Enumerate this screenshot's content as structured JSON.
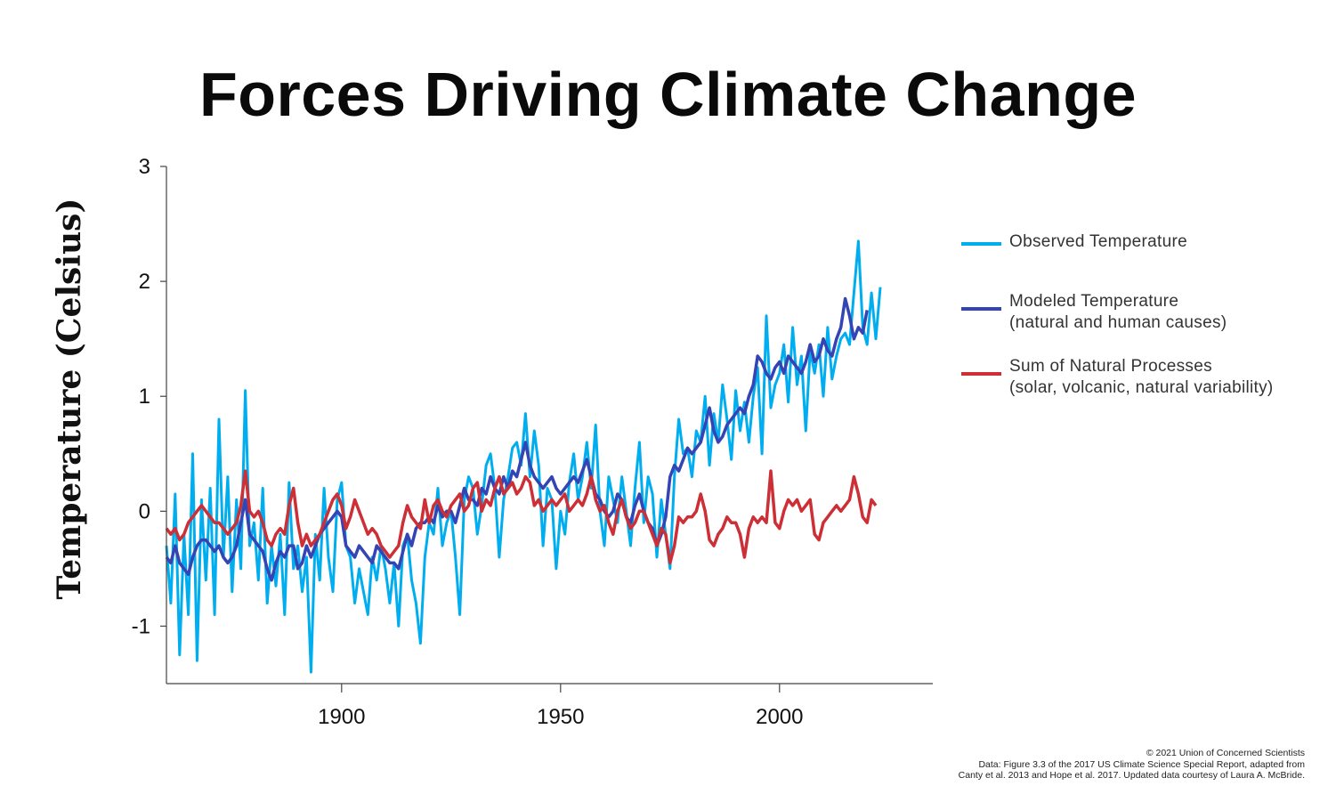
{
  "chart_data": {
    "type": "line",
    "title": "Forces Driving Climate Change",
    "xlabel": "",
    "ylabel": "Temperature (Celsius)",
    "xlim": [
      1860,
      2035
    ],
    "ylim": [
      -1.5,
      3
    ],
    "xticks": [
      1900,
      1950,
      2000
    ],
    "yticks": [
      3,
      2,
      1,
      0,
      -1
    ],
    "grid": false,
    "legend_position": "right",
    "series": [
      {
        "name": "Observed Temperature",
        "color": "#00AEEF",
        "x_start": 1860,
        "x_step": 1,
        "values": [
          -0.3,
          -0.8,
          0.15,
          -1.25,
          -0.2,
          -0.9,
          0.5,
          -1.3,
          0.1,
          -0.6,
          0.2,
          -0.9,
          0.8,
          -0.4,
          0.3,
          -0.7,
          0.1,
          -0.5,
          1.05,
          -0.3,
          -0.1,
          -0.6,
          0.2,
          -0.8,
          -0.3,
          -0.65,
          -0.2,
          -0.9,
          0.25,
          -0.5,
          -0.3,
          -0.7,
          -0.4,
          -1.4,
          -0.2,
          -0.6,
          0.2,
          -0.4,
          -0.7,
          0.1,
          0.25,
          -0.3,
          -0.4,
          -0.8,
          -0.5,
          -0.7,
          -0.9,
          -0.4,
          -0.6,
          -0.3,
          -0.5,
          -0.8,
          -0.45,
          -1.0,
          -0.3,
          -0.2,
          -0.6,
          -0.8,
          -1.15,
          -0.4,
          -0.1,
          -0.2,
          0.2,
          -0.3,
          -0.1,
          0.0,
          -0.4,
          -0.9,
          0.1,
          0.3,
          0.2,
          -0.2,
          0.05,
          0.4,
          0.5,
          0.2,
          -0.4,
          0.1,
          0.3,
          0.55,
          0.6,
          0.4,
          0.85,
          0.3,
          0.7,
          0.4,
          -0.3,
          0.2,
          0.1,
          -0.5,
          0.0,
          -0.2,
          0.25,
          0.5,
          0.1,
          0.3,
          0.6,
          0.2,
          0.75,
          0.0,
          -0.3,
          0.3,
          0.1,
          -0.1,
          0.3,
          0.0,
          -0.3,
          0.2,
          0.6,
          -0.1,
          0.3,
          0.15,
          -0.4,
          0.1,
          -0.2,
          -0.5,
          0.3,
          0.8,
          0.5,
          0.55,
          0.3,
          0.7,
          0.6,
          1.0,
          0.4,
          0.85,
          0.6,
          1.1,
          0.8,
          0.45,
          1.05,
          0.7,
          0.95,
          0.6,
          1.0,
          1.25,
          0.5,
          1.7,
          0.9,
          1.1,
          1.2,
          1.45,
          0.95,
          1.6,
          1.1,
          1.35,
          0.7,
          1.4,
          1.2,
          1.45,
          1.0,
          1.6,
          1.15,
          1.35,
          1.5,
          1.55,
          1.45,
          1.9,
          2.35,
          1.6,
          1.45,
          1.9,
          1.5,
          1.95
        ]
      },
      {
        "name": "Modeled Temperature (natural and human causes)",
        "color": "#3444B4",
        "x_start": 1860,
        "x_step": 1,
        "values": [
          -0.4,
          -0.45,
          -0.3,
          -0.45,
          -0.5,
          -0.55,
          -0.4,
          -0.3,
          -0.25,
          -0.25,
          -0.3,
          -0.35,
          -0.3,
          -0.4,
          -0.45,
          -0.4,
          -0.3,
          -0.1,
          0.1,
          -0.2,
          -0.25,
          -0.3,
          -0.35,
          -0.5,
          -0.6,
          -0.45,
          -0.35,
          -0.4,
          -0.3,
          -0.3,
          -0.5,
          -0.45,
          -0.3,
          -0.4,
          -0.3,
          -0.2,
          -0.15,
          -0.1,
          -0.05,
          0.0,
          -0.05,
          -0.3,
          -0.35,
          -0.4,
          -0.3,
          -0.35,
          -0.4,
          -0.45,
          -0.3,
          -0.35,
          -0.4,
          -0.45,
          -0.45,
          -0.5,
          -0.35,
          -0.2,
          -0.3,
          -0.15,
          -0.1,
          -0.1,
          -0.05,
          -0.1,
          0.05,
          -0.05,
          0.0,
          0.0,
          -0.1,
          0.05,
          0.2,
          0.1,
          0.1,
          0.05,
          0.2,
          0.15,
          0.3,
          0.2,
          0.15,
          0.3,
          0.2,
          0.35,
          0.3,
          0.45,
          0.6,
          0.4,
          0.3,
          0.25,
          0.2,
          0.25,
          0.3,
          0.2,
          0.15,
          0.2,
          0.25,
          0.3,
          0.25,
          0.35,
          0.45,
          0.3,
          0.15,
          0.1,
          0.0,
          -0.05,
          0.0,
          0.15,
          0.1,
          -0.05,
          -0.1,
          0.05,
          0.15,
          0.0,
          -0.1,
          -0.15,
          -0.3,
          -0.2,
          -0.05,
          0.3,
          0.4,
          0.35,
          0.45,
          0.55,
          0.5,
          0.55,
          0.6,
          0.75,
          0.9,
          0.7,
          0.6,
          0.65,
          0.75,
          0.8,
          0.85,
          0.9,
          0.85,
          1.0,
          1.1,
          1.35,
          1.3,
          1.2,
          1.15,
          1.25,
          1.3,
          1.2,
          1.35,
          1.3,
          1.25,
          1.2,
          1.3,
          1.45,
          1.3,
          1.35,
          1.5,
          1.4,
          1.35,
          1.5,
          1.6,
          1.85,
          1.7,
          1.5,
          1.6,
          1.55,
          1.75
        ]
      },
      {
        "name": "Sum of Natural Processes (solar, volcanic, natural variability)",
        "color": "#CC2F36",
        "x_start": 1860,
        "x_step": 1,
        "values": [
          -0.15,
          -0.2,
          -0.15,
          -0.25,
          -0.2,
          -0.1,
          -0.05,
          0.0,
          0.05,
          0.0,
          -0.05,
          -0.1,
          -0.1,
          -0.15,
          -0.2,
          -0.15,
          -0.1,
          0.05,
          0.35,
          0.0,
          -0.05,
          0.0,
          -0.1,
          -0.25,
          -0.3,
          -0.2,
          -0.15,
          -0.2,
          0.05,
          0.2,
          -0.1,
          -0.3,
          -0.2,
          -0.3,
          -0.25,
          -0.2,
          -0.1,
          0.0,
          0.1,
          0.15,
          0.05,
          -0.15,
          -0.05,
          0.1,
          0.0,
          -0.1,
          -0.2,
          -0.15,
          -0.2,
          -0.3,
          -0.35,
          -0.4,
          -0.35,
          -0.3,
          -0.1,
          0.05,
          -0.05,
          -0.1,
          -0.15,
          0.1,
          -0.1,
          0.05,
          0.1,
          0.0,
          -0.05,
          0.05,
          0.1,
          0.15,
          0.0,
          0.05,
          0.2,
          0.25,
          0.0,
          0.1,
          0.05,
          0.2,
          0.3,
          0.15,
          0.2,
          0.25,
          0.15,
          0.2,
          0.3,
          0.25,
          0.05,
          0.1,
          0.0,
          0.05,
          0.1,
          0.05,
          0.1,
          0.15,
          0.0,
          0.05,
          0.1,
          0.05,
          0.15,
          0.3,
          0.1,
          0.0,
          0.05,
          -0.1,
          -0.2,
          0.0,
          0.1,
          -0.05,
          -0.15,
          -0.1,
          0.0,
          0.0,
          -0.1,
          -0.2,
          -0.3,
          -0.15,
          -0.2,
          -0.45,
          -0.3,
          -0.05,
          -0.1,
          -0.05,
          -0.05,
          0.0,
          0.15,
          0.0,
          -0.25,
          -0.3,
          -0.2,
          -0.15,
          -0.05,
          -0.1,
          -0.1,
          -0.2,
          -0.4,
          -0.15,
          -0.05,
          -0.1,
          -0.05,
          -0.1,
          0.35,
          -0.1,
          -0.15,
          0.0,
          0.1,
          0.05,
          0.1,
          0.0,
          0.05,
          0.1,
          -0.2,
          -0.25,
          -0.1,
          -0.05,
          0.0,
          0.05,
          0.0,
          0.05,
          0.1,
          0.3,
          0.15,
          -0.05,
          -0.1,
          0.1,
          0.05
        ]
      }
    ]
  },
  "legend": [
    {
      "line1": "Observed Temperature",
      "line2": ""
    },
    {
      "line1": "Modeled Temperature",
      "line2": "(natural and human causes)"
    },
    {
      "line1": "Sum of Natural Processes",
      "line2": "(solar, volcanic, natural variability)"
    }
  ],
  "credits": {
    "line1": "© 2021 Union of Concerned Scientists",
    "line2": "Data: Figure 3.3 of the 2017 US Climate Science Special Report, adapted from",
    "line3": "Canty et al. 2013 and Hope et al. 2017. Updated data courtesy of Laura A. McBride."
  }
}
